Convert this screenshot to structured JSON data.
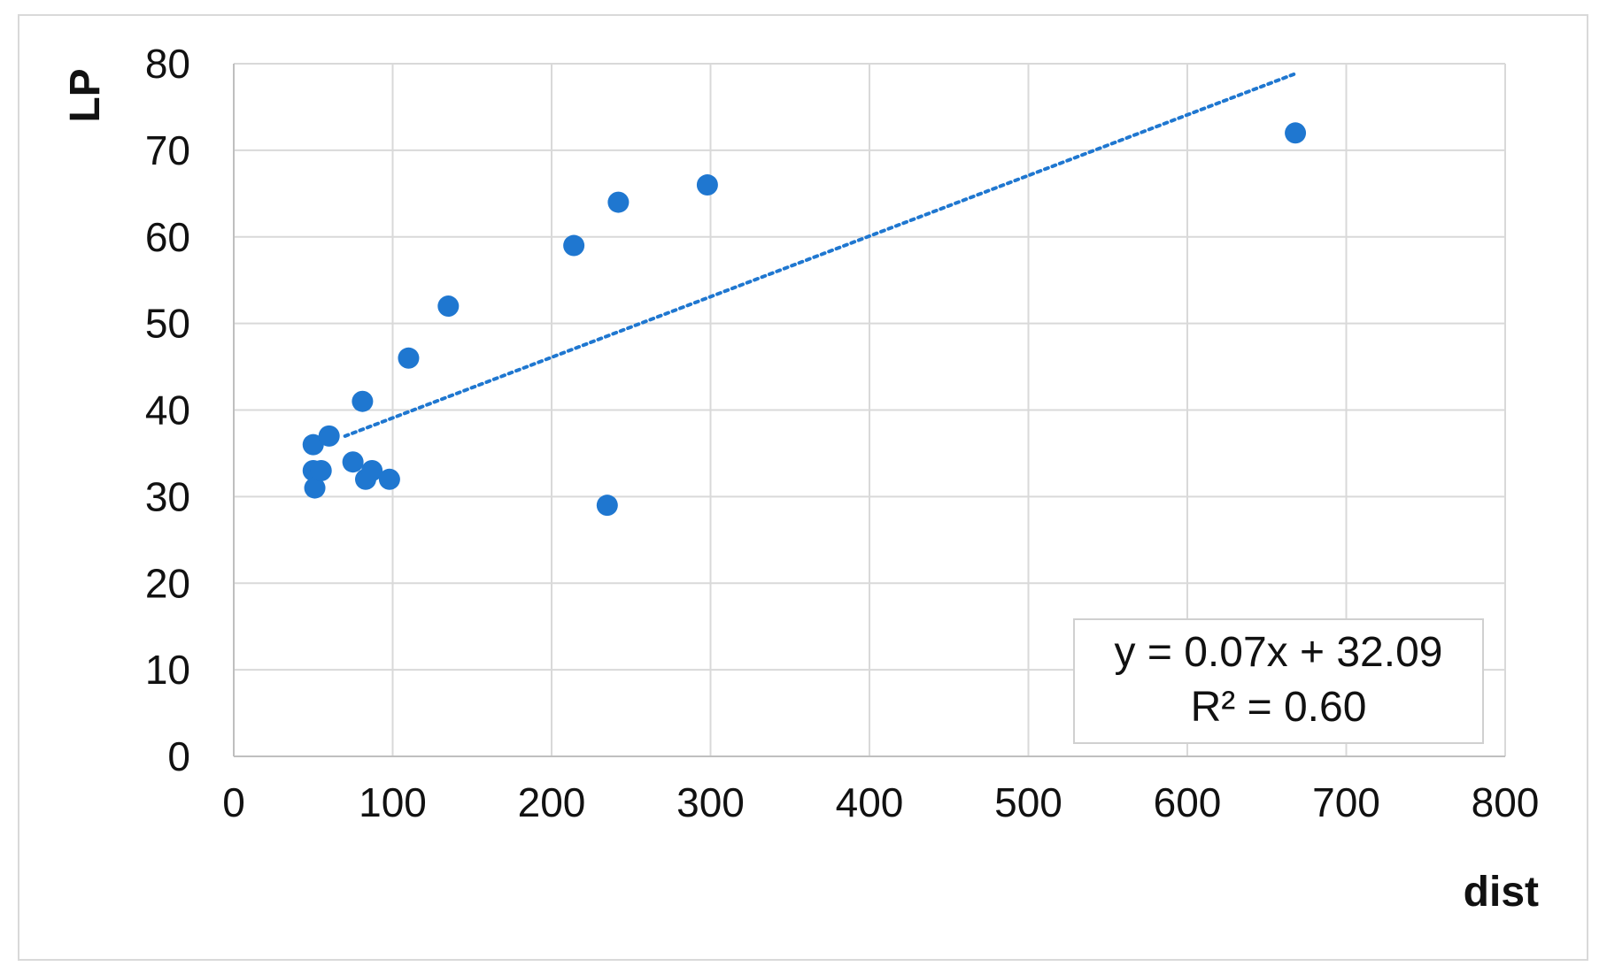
{
  "chart_data": {
    "type": "scatter",
    "xlabel": "dist",
    "ylabel": "LP",
    "xlim": [
      0,
      800
    ],
    "ylim": [
      0,
      80
    ],
    "x_ticks": [
      0,
      100,
      200,
      300,
      400,
      500,
      600,
      700,
      800
    ],
    "y_ticks": [
      0,
      10,
      20,
      30,
      40,
      50,
      60,
      70,
      80
    ],
    "x_tick_labels": [
      "0",
      "100",
      "200",
      "300",
      "400",
      "500",
      "600",
      "700",
      "800"
    ],
    "y_tick_labels": [
      "0",
      "10",
      "20",
      "30",
      "40",
      "50",
      "60",
      "70",
      "80"
    ],
    "grid": true,
    "legend": "none",
    "series": [
      {
        "points": [
          {
            "x": 50,
            "y": 36
          },
          {
            "x": 50,
            "y": 33
          },
          {
            "x": 51,
            "y": 31
          },
          {
            "x": 55,
            "y": 33
          },
          {
            "x": 60,
            "y": 37
          },
          {
            "x": 75,
            "y": 34
          },
          {
            "x": 81,
            "y": 41
          },
          {
            "x": 83,
            "y": 32
          },
          {
            "x": 87,
            "y": 33
          },
          {
            "x": 98,
            "y": 32
          },
          {
            "x": 110,
            "y": 46
          },
          {
            "x": 135,
            "y": 52
          },
          {
            "x": 214,
            "y": 59
          },
          {
            "x": 235,
            "y": 29
          },
          {
            "x": 242,
            "y": 64
          },
          {
            "x": 298,
            "y": 66
          },
          {
            "x": 668,
            "y": 72
          }
        ],
        "color": "#1f77d0"
      }
    ],
    "trendline": {
      "type": "linear",
      "style": "dotted",
      "color": "#1f77d0",
      "slope": 0.07,
      "intercept": 32.09,
      "x_range": [
        70,
        668
      ],
      "equation_text": "y = 0.07x + 32.09",
      "r2_text": "R² = 0.60",
      "label_placement": "bottom-right"
    },
    "colors": {
      "marker": "#1f77d0",
      "grid": "#d9d9d9",
      "axis": "#bfbfbf",
      "text": "#111111"
    }
  }
}
